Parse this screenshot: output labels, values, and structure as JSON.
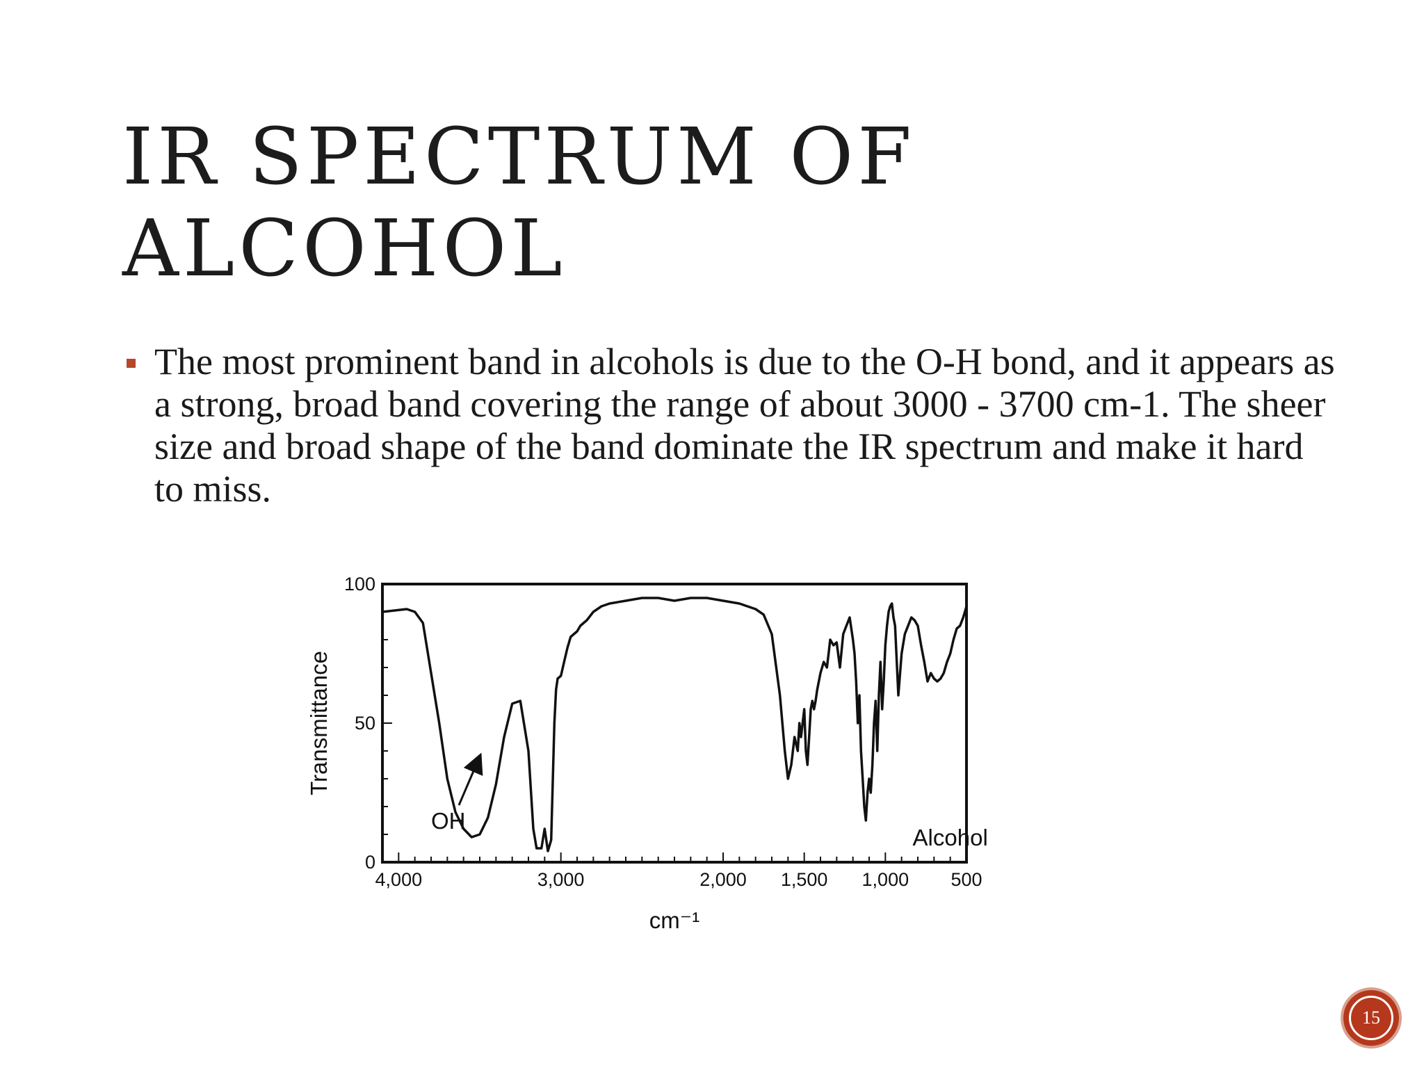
{
  "slide": {
    "title_lines": [
      "IR SPECTRUM OF",
      "ALCOHOL"
    ],
    "bullets": [
      "The most prominent band in alcohols is due to the O-H bond, and it appears as a strong, broad band covering the range of about 3000 - 3700 cm-1. The sheer size and broad shape of the band dominate the IR spectrum and make it hard to miss."
    ],
    "page_number": "15",
    "accent_color": "#b5381c",
    "bullet_color": "#b5472a",
    "bullet_icon": "square-bullet-icon"
  },
  "chart_data": {
    "type": "line",
    "title": "",
    "xlabel": "cm⁻¹",
    "ylabel": "Transmittance",
    "xlim": [
      4100,
      500
    ],
    "ylim": [
      0,
      100
    ],
    "x_reversed": true,
    "x_ticks": [
      {
        "value": 4000,
        "label": "4,000"
      },
      {
        "value": 3000,
        "label": "3,000"
      },
      {
        "value": 2000,
        "label": "2,000"
      },
      {
        "value": 1500,
        "label": "1,500"
      },
      {
        "value": 1000,
        "label": "1,000"
      },
      {
        "value": 500,
        "label": "500"
      }
    ],
    "y_ticks": [
      {
        "value": 0,
        "label": "0"
      },
      {
        "value": 50,
        "label": "50"
      },
      {
        "value": 100,
        "label": "100"
      }
    ],
    "grid": false,
    "annotations": [
      {
        "text": "OH",
        "x": 3800,
        "y": 12,
        "arrow_to": [
          3500,
          38
        ]
      },
      {
        "text": "Alcohol",
        "x": 600,
        "y": 6
      }
    ],
    "series": [
      {
        "x": [
          4100,
          3950,
          3900,
          3850,
          3800,
          3750,
          3700,
          3650,
          3600,
          3550,
          3500,
          3450,
          3400,
          3350,
          3300,
          3250,
          3200,
          3170,
          3150,
          3120,
          3100,
          3080,
          3060,
          3040,
          3030,
          3020,
          3000,
          2980,
          2960,
          2940,
          2920,
          2900,
          2880,
          2860,
          2840,
          2800,
          2750,
          2700,
          2600,
          2500,
          2400,
          2300,
          2200,
          2100,
          2000,
          1900,
          1800,
          1750,
          1700,
          1650,
          1620,
          1600,
          1580,
          1560,
          1540,
          1530,
          1520,
          1500,
          1490,
          1480,
          1470,
          1460,
          1450,
          1440,
          1430,
          1420,
          1400,
          1380,
          1360,
          1350,
          1340,
          1320,
          1300,
          1280,
          1260,
          1240,
          1220,
          1200,
          1190,
          1180,
          1170,
          1160,
          1150,
          1140,
          1130,
          1120,
          1110,
          1100,
          1090,
          1080,
          1070,
          1060,
          1050,
          1040,
          1030,
          1020,
          1010,
          1000,
          990,
          980,
          970,
          960,
          950,
          940,
          920,
          900,
          880,
          860,
          840,
          820,
          800,
          780,
          760,
          740,
          720,
          700,
          680,
          660,
          640,
          620,
          600,
          580,
          560,
          540,
          520,
          510,
          500
        ],
        "y": [
          90,
          91,
          90,
          86,
          68,
          50,
          30,
          18,
          12,
          9,
          10,
          16,
          28,
          45,
          57,
          58,
          40,
          12,
          5,
          5,
          12,
          4,
          8,
          50,
          62,
          66,
          67,
          72,
          77,
          81,
          82,
          83,
          85,
          86,
          87,
          90,
          92,
          93,
          94,
          95,
          95,
          94,
          95,
          95,
          94,
          93,
          91,
          89,
          82,
          60,
          40,
          30,
          35,
          45,
          40,
          50,
          45,
          55,
          40,
          35,
          45,
          55,
          58,
          55,
          58,
          62,
          68,
          72,
          70,
          75,
          80,
          78,
          79,
          70,
          82,
          85,
          88,
          80,
          75,
          65,
          50,
          60,
          40,
          30,
          20,
          15,
          25,
          30,
          25,
          35,
          50,
          58,
          40,
          60,
          72,
          55,
          65,
          78,
          85,
          90,
          92,
          93,
          88,
          85,
          60,
          75,
          82,
          85,
          88,
          87,
          85,
          78,
          72,
          65,
          68,
          66,
          65,
          66,
          68,
          72,
          75,
          80,
          84,
          85,
          88,
          90,
          92
        ]
      }
    ]
  }
}
